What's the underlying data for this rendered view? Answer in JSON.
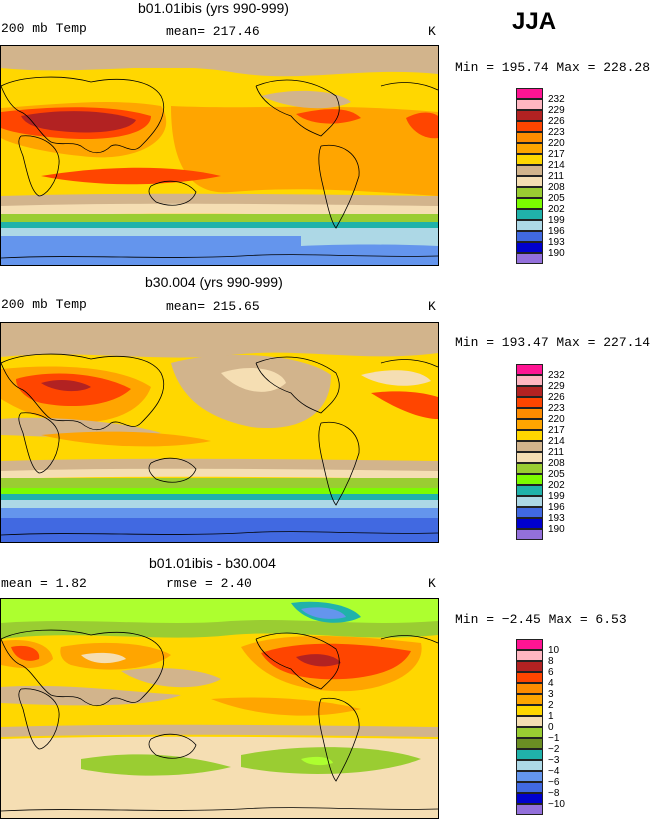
{
  "season": "JJA",
  "panels": [
    {
      "title": "b01.01ibis (yrs 990-999)",
      "left_label": "200 mb Temp",
      "center_label": "mean= 217.46",
      "units": "K",
      "minmax": "Min = 195.74 Max = 228.28",
      "legend": [
        "232",
        "229",
        "226",
        "223",
        "220",
        "217",
        "214",
        "211",
        "208",
        "205",
        "202",
        "199",
        "196",
        "193",
        "190"
      ],
      "colors": [
        "#ff1493",
        "#ffb6c1",
        "#b22222",
        "#ff4500",
        "#ff8c00",
        "#ffa500",
        "#ffd700",
        "#d2b48c",
        "#f5deb3",
        "#9acd32",
        "#7cfc00",
        "#20b2aa",
        "#add8e6",
        "#4169e1",
        "#0000cd",
        "#9370db"
      ]
    },
    {
      "title": "b30.004 (yrs 990-999)",
      "left_label": "200 mb Temp",
      "center_label": "mean= 215.65",
      "units": "K",
      "minmax": "Min = 193.47 Max = 227.14",
      "legend": [
        "232",
        "229",
        "226",
        "223",
        "220",
        "217",
        "214",
        "211",
        "208",
        "205",
        "202",
        "199",
        "196",
        "193",
        "190"
      ],
      "colors": [
        "#ff1493",
        "#ffb6c1",
        "#b22222",
        "#ff4500",
        "#ff8c00",
        "#ffa500",
        "#ffd700",
        "#d2b48c",
        "#f5deb3",
        "#9acd32",
        "#7cfc00",
        "#20b2aa",
        "#add8e6",
        "#4169e1",
        "#0000cd",
        "#9370db"
      ]
    },
    {
      "title": "b01.01ibis - b30.004",
      "left_label": "mean =    1.82",
      "center_label": "rmse =    2.40",
      "units": "K",
      "minmax": "Min =  −2.45 Max =    6.53",
      "legend": [
        "10",
        "8",
        "6",
        "4",
        "3",
        "2",
        "1",
        "0",
        "−1",
        "−2",
        "−3",
        "−4",
        "−6",
        "−8",
        "−10"
      ],
      "colors": [
        "#ff1493",
        "#ffb6c1",
        "#b22222",
        "#ff4500",
        "#ff8c00",
        "#ffa500",
        "#ffd700",
        "#f5deb3",
        "#9acd32",
        "#6b8e23",
        "#20b2aa",
        "#add8e6",
        "#6495ed",
        "#4169e1",
        "#0000cd",
        "#9370db"
      ]
    }
  ]
}
